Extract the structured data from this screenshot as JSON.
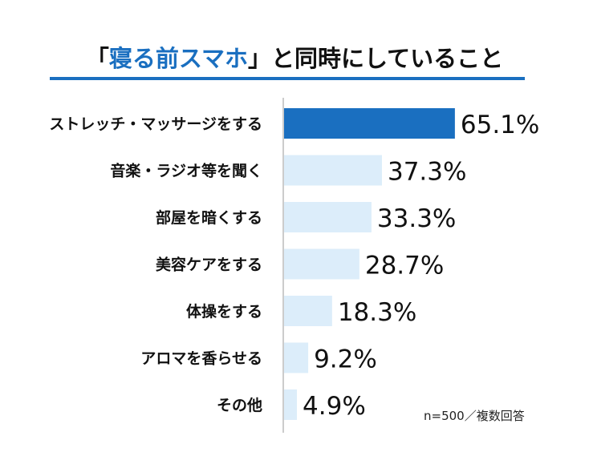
{
  "header": {
    "title_open": "「",
    "title_highlight": "寝る前スマホ",
    "title_rest": "」と同時にしていること"
  },
  "chart_data": {
    "type": "bar",
    "orientation": "horizontal",
    "title": "「寝る前スマホ」と同時にしていること",
    "categories": [
      "ストレッチ・マッサージをする",
      "音楽・ラジオ等を聞く",
      "部屋を暗くする",
      "美容ケアをする",
      "体操をする",
      "アロマを香らせる",
      "その他"
    ],
    "values": [
      65.1,
      37.3,
      33.3,
      28.7,
      18.3,
      9.2,
      4.9
    ],
    "value_labels": [
      "65.1%",
      "37.3%",
      "33.3%",
      "28.7%",
      "18.3%",
      "9.2%",
      "4.9%"
    ],
    "unit": "%",
    "xlim": [
      0,
      100
    ],
    "xlabel": "",
    "ylabel": "",
    "grid": false,
    "note": "n=500／複数回答",
    "colors": {
      "highlight": "#1a6fc0",
      "bar": "#dcedfa",
      "axis": "#9a9a9a"
    }
  }
}
